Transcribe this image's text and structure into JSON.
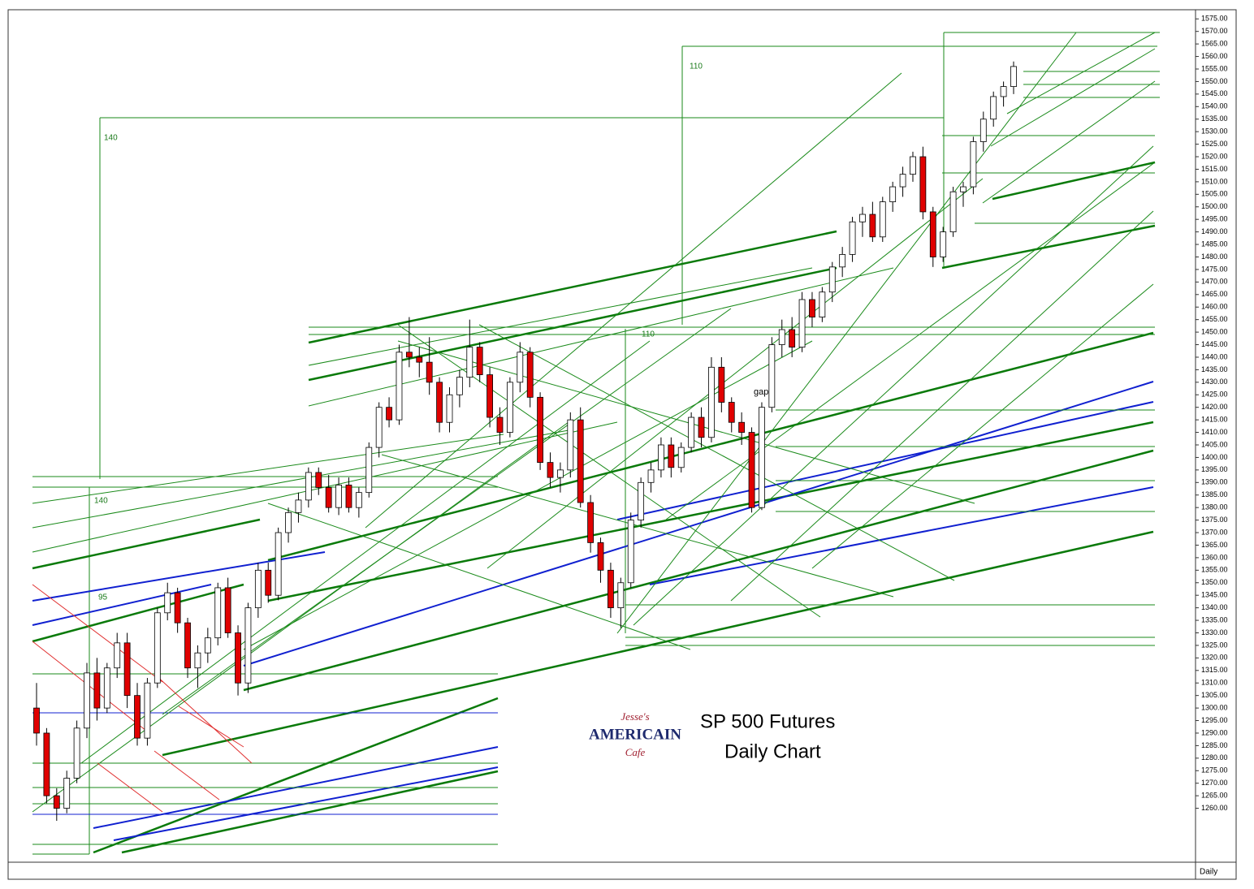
{
  "chart_data": {
    "type": "candlestick",
    "title": "SP 500 Futures",
    "subtitle": "Daily Chart",
    "period_label": "Daily",
    "annotations": [
      "140",
      "110",
      "110",
      "140",
      "95",
      "gap"
    ],
    "logo": [
      "Jesse's",
      "AMERICAIN",
      "Cafe"
    ],
    "up_color": "#ffffff",
    "down_color": "#e00000",
    "wick_color": "#000000",
    "ylim": [
      1255,
      1578
    ],
    "yticks": [
      {
        "value": 1575,
        "label": "1575.00"
      },
      {
        "value": 1570,
        "label": "1570.00"
      },
      {
        "value": 1565,
        "label": "1565.00"
      },
      {
        "value": 1560,
        "label": "1560.00"
      },
      {
        "value": 1555,
        "label": "1555.00"
      },
      {
        "value": 1550,
        "label": "1550.00"
      },
      {
        "value": 1545,
        "label": "1545.00"
      },
      {
        "value": 1540,
        "label": "1540.00"
      },
      {
        "value": 1535,
        "label": "1535.00"
      },
      {
        "value": 1530,
        "label": "1530.00"
      },
      {
        "value": 1525,
        "label": "1525.00"
      },
      {
        "value": 1520,
        "label": "1520.00"
      },
      {
        "value": 1515,
        "label": "1515.00"
      },
      {
        "value": 1510,
        "label": "1510.00"
      },
      {
        "value": 1505,
        "label": "1505.00"
      },
      {
        "value": 1500,
        "label": "1500.00"
      },
      {
        "value": 1495,
        "label": "1495.00"
      },
      {
        "value": 1490,
        "label": "1490.00"
      },
      {
        "value": 1485,
        "label": "1485.00"
      },
      {
        "value": 1480,
        "label": "1480.00"
      },
      {
        "value": 1475,
        "label": "1475.00"
      },
      {
        "value": 1470,
        "label": "1470.00"
      },
      {
        "value": 1465,
        "label": "1465.00"
      },
      {
        "value": 1460,
        "label": "1460.00"
      },
      {
        "value": 1455,
        "label": "1455.00"
      },
      {
        "value": 1450,
        "label": "1450.00"
      },
      {
        "value": 1445,
        "label": "1445.00"
      },
      {
        "value": 1440,
        "label": "1440.00"
      },
      {
        "value": 1435,
        "label": "1435.00"
      },
      {
        "value": 1430,
        "label": "1430.00"
      },
      {
        "value": 1425,
        "label": "1425.00"
      },
      {
        "value": 1420,
        "label": "1420.00"
      },
      {
        "value": 1415,
        "label": "1415.00"
      },
      {
        "value": 1410,
        "label": "1410.00"
      },
      {
        "value": 1405,
        "label": "1405.00"
      },
      {
        "value": 1400,
        "label": "1400.00"
      },
      {
        "value": 1395,
        "label": "1395.00"
      },
      {
        "value": 1390,
        "label": "1390.00"
      },
      {
        "value": 1385,
        "label": "1385.00"
      },
      {
        "value": 1380,
        "label": "1380.00"
      },
      {
        "value": 1375,
        "label": "1375.00"
      },
      {
        "value": 1370,
        "label": "1370.00"
      },
      {
        "value": 1365,
        "label": "1365.00"
      },
      {
        "value": 1360,
        "label": "1360.00"
      },
      {
        "value": 1355,
        "label": "1355.00"
      },
      {
        "value": 1350,
        "label": "1350.00"
      },
      {
        "value": 1345,
        "label": "1345.00"
      },
      {
        "value": 1340,
        "label": "1340.00"
      },
      {
        "value": 1335,
        "label": "1335.00"
      },
      {
        "value": 1330,
        "label": "1330.00"
      },
      {
        "value": 1325,
        "label": "1325.00"
      },
      {
        "value": 1320,
        "label": "1320.00"
      },
      {
        "value": 1315,
        "label": "1315.00"
      },
      {
        "value": 1310,
        "label": "1310.00"
      },
      {
        "value": 1305,
        "label": "1305.00"
      },
      {
        "value": 1300,
        "label": "1300.00"
      },
      {
        "value": 1295,
        "label": "1295.00"
      },
      {
        "value": 1290,
        "label": "1290.00"
      },
      {
        "value": 1285,
        "label": "1285.00"
      },
      {
        "value": 1280,
        "label": "1280.00"
      },
      {
        "value": 1275,
        "label": "1275.00"
      },
      {
        "value": 1270,
        "label": "1270.00"
      },
      {
        "value": 1265,
        "label": "1265.00"
      },
      {
        "value": 1260,
        "label": "1260.00"
      }
    ],
    "open": [
      1300,
      1290,
      1265,
      1260,
      1272,
      1292,
      1314,
      1300,
      1316,
      1326,
      1305,
      1288,
      1310,
      1338,
      1346,
      1334,
      1316,
      1322,
      1328,
      1348,
      1330,
      1310,
      1340,
      1355,
      1345,
      1370,
      1378,
      1383,
      1394,
      1388,
      1380,
      1389,
      1380,
      1386,
      1404,
      1420,
      1415,
      1442,
      1440,
      1438,
      1430,
      1414,
      1425,
      1432,
      1444,
      1433,
      1416,
      1410,
      1430,
      1442,
      1424,
      1398,
      1392,
      1395,
      1415,
      1382,
      1366,
      1355,
      1340,
      1350,
      1375,
      1390,
      1395,
      1405,
      1396,
      1404,
      1416,
      1408,
      1436,
      1422,
      1414,
      1410,
      1380,
      1420,
      1445,
      1451,
      1444,
      1463,
      1456,
      1466,
      1476,
      1481,
      1494,
      1497,
      1488,
      1502,
      1508,
      1513,
      1520,
      1498,
      1480,
      1490,
      1506,
      1508,
      1526,
      1535,
      1544,
      1548
    ],
    "high": [
      1310,
      1292,
      1268,
      1275,
      1295,
      1318,
      1320,
      1318,
      1330,
      1330,
      1310,
      1312,
      1340,
      1350,
      1348,
      1336,
      1325,
      1332,
      1350,
      1352,
      1333,
      1342,
      1358,
      1358,
      1372,
      1380,
      1386,
      1396,
      1396,
      1393,
      1392,
      1392,
      1388,
      1406,
      1422,
      1424,
      1445,
      1456,
      1444,
      1448,
      1432,
      1428,
      1435,
      1455,
      1446,
      1436,
      1420,
      1432,
      1446,
      1444,
      1426,
      1402,
      1398,
      1418,
      1420,
      1385,
      1368,
      1358,
      1352,
      1378,
      1392,
      1398,
      1408,
      1408,
      1406,
      1418,
      1420,
      1440,
      1440,
      1424,
      1418,
      1412,
      1422,
      1448,
      1455,
      1456,
      1466,
      1466,
      1468,
      1478,
      1484,
      1496,
      1500,
      1502,
      1504,
      1510,
      1516,
      1522,
      1524,
      1500,
      1492,
      1508,
      1510,
      1528,
      1538,
      1546,
      1550,
      1558
    ],
    "low": [
      1285,
      1262,
      1255,
      1258,
      1270,
      1288,
      1295,
      1298,
      1312,
      1300,
      1285,
      1285,
      1308,
      1335,
      1330,
      1312,
      1308,
      1318,
      1325,
      1328,
      1305,
      1306,
      1336,
      1342,
      1343,
      1366,
      1374,
      1380,
      1385,
      1378,
      1377,
      1378,
      1376,
      1384,
      1400,
      1412,
      1413,
      1436,
      1432,
      1425,
      1410,
      1410,
      1420,
      1428,
      1430,
      1412,
      1405,
      1408,
      1426,
      1420,
      1395,
      1388,
      1386,
      1392,
      1380,
      1362,
      1350,
      1336,
      1332,
      1348,
      1372,
      1386,
      1392,
      1392,
      1394,
      1402,
      1404,
      1406,
      1418,
      1410,
      1405,
      1378,
      1379,
      1418,
      1440,
      1440,
      1442,
      1452,
      1454,
      1462,
      1472,
      1478,
      1488,
      1486,
      1486,
      1498,
      1504,
      1510,
      1495,
      1476,
      1478,
      1488,
      1500,
      1505,
      1522,
      1532,
      1540,
      1545
    ],
    "close": [
      1290,
      1265,
      1260,
      1272,
      1292,
      1314,
      1300,
      1316,
      1326,
      1305,
      1288,
      1310,
      1338,
      1346,
      1334,
      1316,
      1322,
      1328,
      1348,
      1330,
      1310,
      1340,
      1355,
      1345,
      1370,
      1378,
      1383,
      1394,
      1388,
      1380,
      1389,
      1380,
      1386,
      1404,
      1420,
      1415,
      1442,
      1440,
      1438,
      1430,
      1414,
      1425,
      1432,
      1444,
      1433,
      1416,
      1410,
      1430,
      1442,
      1424,
      1398,
      1392,
      1395,
      1415,
      1382,
      1366,
      1355,
      1340,
      1350,
      1375,
      1390,
      1395,
      1405,
      1396,
      1404,
      1416,
      1408,
      1436,
      1422,
      1414,
      1410,
      1380,
      1420,
      1445,
      1451,
      1444,
      1463,
      1456,
      1466,
      1476,
      1481,
      1494,
      1497,
      1488,
      1502,
      1508,
      1513,
      1520,
      1498,
      1480,
      1490,
      1506,
      1508,
      1526,
      1535,
      1544,
      1548,
      1556
    ]
  }
}
